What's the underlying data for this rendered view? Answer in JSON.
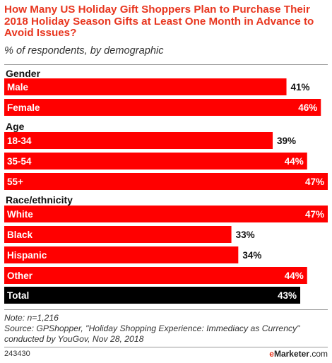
{
  "title": "How Many US Holiday Gift Shoppers Plan to Purchase Their 2018 Holiday Season Gifts at Least One Month in Advance to Avoid Issues?",
  "subtitle": "% of respondents, by demographic",
  "colors": {
    "bar": "#ff0000",
    "total_bar": "#000000",
    "title": "#e8361f"
  },
  "chart_data": {
    "type": "bar",
    "orientation": "horizontal",
    "title": "How Many US Holiday Gift Shoppers Plan to Purchase Their 2018 Holiday Season Gifts at Least One Month in Advance to Avoid Issues?",
    "subtitle": "% of respondents, by demographic",
    "xlim": [
      0,
      47
    ],
    "groups": [
      {
        "name": "Gender",
        "items": [
          {
            "label": "Male",
            "value": 41,
            "display": "41%"
          },
          {
            "label": "Female",
            "value": 46,
            "display": "46%"
          }
        ]
      },
      {
        "name": "Age",
        "items": [
          {
            "label": "18-34",
            "value": 39,
            "display": "39%"
          },
          {
            "label": "35-54",
            "value": 44,
            "display": "44%"
          },
          {
            "label": "55+",
            "value": 47,
            "display": "47%"
          }
        ]
      },
      {
        "name": "Race/ethnicity",
        "items": [
          {
            "label": "White",
            "value": 47,
            "display": "47%"
          },
          {
            "label": "Black",
            "value": 33,
            "display": "33%"
          },
          {
            "label": "Hispanic",
            "value": 34,
            "display": "34%"
          },
          {
            "label": "Other",
            "value": 44,
            "display": "44%"
          }
        ]
      },
      {
        "name": "",
        "items": [
          {
            "label": "Total",
            "value": 43,
            "display": "43%",
            "highlight": true
          }
        ]
      }
    ]
  },
  "notes": {
    "note": "Note: n=1,216",
    "source": "Source: GPShopper, \"Holiday Shopping Experience: Immediacy as Currency\" conducted by YouGov, Nov 28, 2018"
  },
  "footer": {
    "chart_id": "243430",
    "brand_e": "e",
    "brand_rest": "Marketer",
    "brand_suffix": ".com"
  }
}
